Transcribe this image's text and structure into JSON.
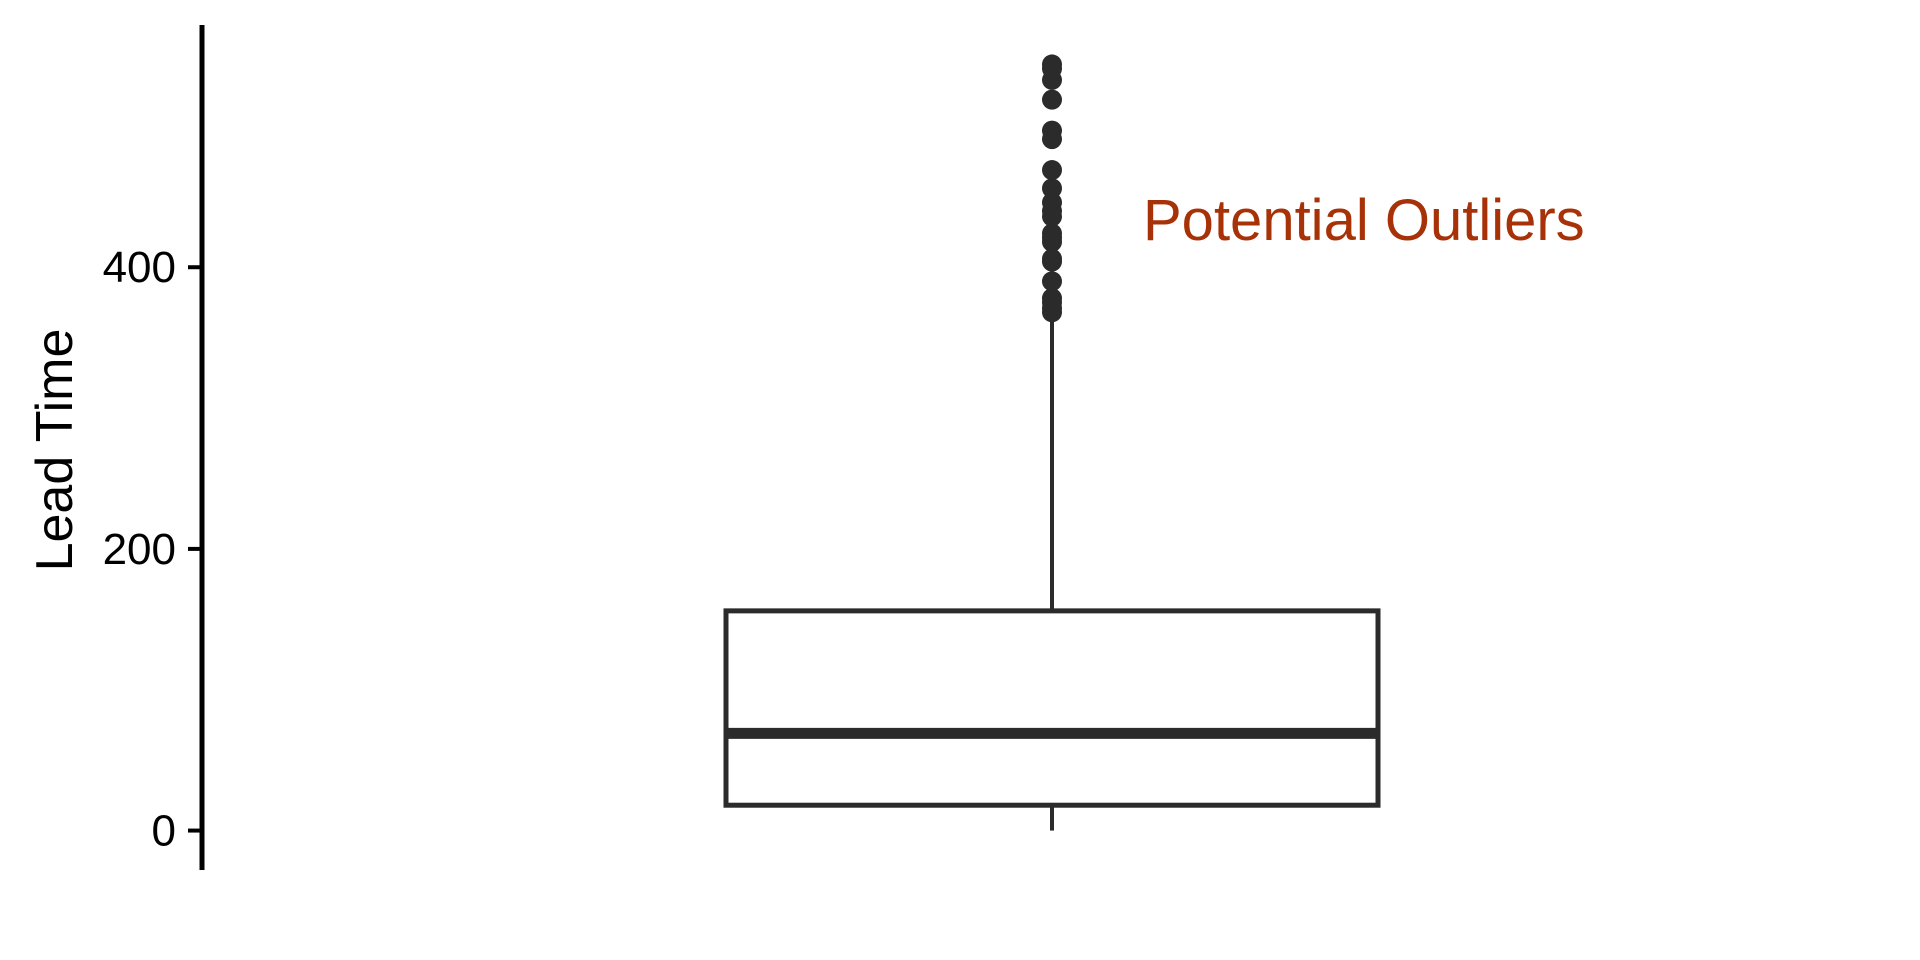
{
  "chart_data": {
    "type": "box",
    "ylabel": "Lead Time",
    "yticks": [
      0,
      200,
      400
    ],
    "ylim": [
      -28,
      572
    ],
    "median": 69,
    "q1": 18,
    "q3": 156,
    "whisker_low": 0,
    "whisker_high": 366,
    "outliers": [
      368,
      371,
      375,
      378,
      390,
      404,
      406,
      418,
      421,
      424,
      436,
      440,
      446,
      456,
      469,
      491,
      497,
      519,
      533,
      541,
      544
    ],
    "annotation": "Potential Outliers",
    "colors": {
      "box": "#2b2b2b",
      "axis": "#000000",
      "annotation": "#a83208"
    }
  }
}
